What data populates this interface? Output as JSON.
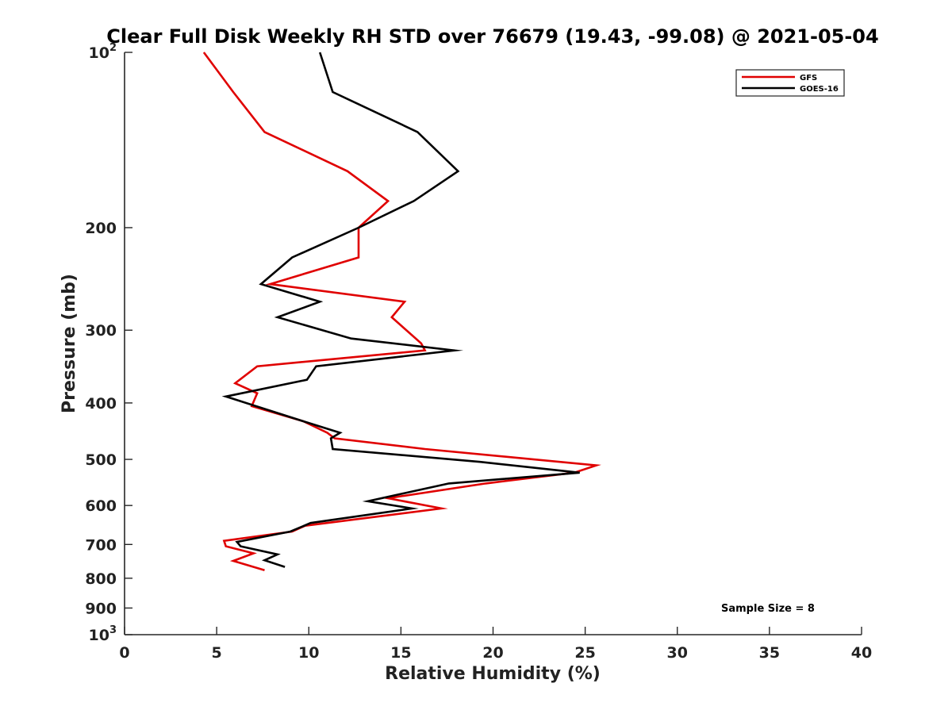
{
  "chart_data": {
    "type": "line",
    "title": "Clear Full Disk Weekly RH STD over 76679 (19.43, -99.08) @ 2021-05-04",
    "xlabel": "Relative Humidity (%)",
    "ylabel": "Pressure (mb)",
    "xlim": [
      0,
      40
    ],
    "ylim": [
      100,
      1000
    ],
    "yscale": "log",
    "y_reversed": true,
    "grid": false,
    "legend_position": "top-right",
    "x_ticks": [
      "0",
      "5",
      "10",
      "15",
      "20",
      "25",
      "30",
      "35",
      "40"
    ],
    "x_tick_values": [
      0,
      5,
      10,
      15,
      20,
      25,
      30,
      35,
      40
    ],
    "y_ticks": [
      {
        "value": 100,
        "base": "10",
        "exp": "2"
      },
      {
        "value": 200,
        "label": "200"
      },
      {
        "value": 300,
        "label": "300"
      },
      {
        "value": 400,
        "label": "400"
      },
      {
        "value": 500,
        "label": "500"
      },
      {
        "value": 600,
        "label": "600"
      },
      {
        "value": 700,
        "label": "700"
      },
      {
        "value": 800,
        "label": "800"
      },
      {
        "value": 900,
        "label": "900"
      },
      {
        "value": 1000,
        "base": "10",
        "exp": "3"
      }
    ],
    "annotation": "Sample Size = 8",
    "series": [
      {
        "name": "GFS",
        "color": "#e00000",
        "points": [
          {
            "x": 4.3,
            "y": 100
          },
          {
            "x": 5.9,
            "y": 117
          },
          {
            "x": 7.6,
            "y": 137
          },
          {
            "x": 12.1,
            "y": 160
          },
          {
            "x": 14.3,
            "y": 180
          },
          {
            "x": 12.7,
            "y": 200
          },
          {
            "x": 12.7,
            "y": 225
          },
          {
            "x": 7.9,
            "y": 250
          },
          {
            "x": 15.2,
            "y": 268
          },
          {
            "x": 14.5,
            "y": 285
          },
          {
            "x": 16.1,
            "y": 316
          },
          {
            "x": 16.3,
            "y": 325
          },
          {
            "x": 7.2,
            "y": 346
          },
          {
            "x": 6.0,
            "y": 370
          },
          {
            "x": 7.2,
            "y": 385
          },
          {
            "x": 6.9,
            "y": 405
          },
          {
            "x": 9.7,
            "y": 430
          },
          {
            "x": 11.0,
            "y": 450
          },
          {
            "x": 11.4,
            "y": 460
          },
          {
            "x": 16.3,
            "y": 480
          },
          {
            "x": 25.6,
            "y": 512
          },
          {
            "x": 24.4,
            "y": 527
          },
          {
            "x": 19.6,
            "y": 550
          },
          {
            "x": 14.3,
            "y": 583
          },
          {
            "x": 17.2,
            "y": 607
          },
          {
            "x": 9.8,
            "y": 650
          },
          {
            "x": 9.1,
            "y": 665
          },
          {
            "x": 5.4,
            "y": 690
          },
          {
            "x": 5.5,
            "y": 705
          },
          {
            "x": 7.0,
            "y": 725
          },
          {
            "x": 5.9,
            "y": 747
          },
          {
            "x": 7.6,
            "y": 775
          }
        ]
      },
      {
        "name": "GOES-16",
        "color": "#000000",
        "points": [
          {
            "x": 10.6,
            "y": 100
          },
          {
            "x": 11.3,
            "y": 117
          },
          {
            "x": 15.9,
            "y": 137
          },
          {
            "x": 18.1,
            "y": 160
          },
          {
            "x": 15.7,
            "y": 180
          },
          {
            "x": 12.7,
            "y": 200
          },
          {
            "x": 9.1,
            "y": 225
          },
          {
            "x": 7.4,
            "y": 250
          },
          {
            "x": 10.6,
            "y": 268
          },
          {
            "x": 8.3,
            "y": 285
          },
          {
            "x": 12.3,
            "y": 310
          },
          {
            "x": 17.9,
            "y": 325
          },
          {
            "x": 10.4,
            "y": 346
          },
          {
            "x": 9.9,
            "y": 365
          },
          {
            "x": 5.5,
            "y": 390
          },
          {
            "x": 9.7,
            "y": 430
          },
          {
            "x": 11.7,
            "y": 450
          },
          {
            "x": 11.2,
            "y": 460
          },
          {
            "x": 11.3,
            "y": 480
          },
          {
            "x": 19.3,
            "y": 505
          },
          {
            "x": 24.7,
            "y": 527
          },
          {
            "x": 17.6,
            "y": 550
          },
          {
            "x": 13.2,
            "y": 590
          },
          {
            "x": 15.6,
            "y": 607
          },
          {
            "x": 10.1,
            "y": 643
          },
          {
            "x": 9.0,
            "y": 665
          },
          {
            "x": 6.1,
            "y": 693
          },
          {
            "x": 6.3,
            "y": 705
          },
          {
            "x": 8.3,
            "y": 728
          },
          {
            "x": 7.6,
            "y": 745
          },
          {
            "x": 8.7,
            "y": 765
          }
        ]
      }
    ]
  }
}
